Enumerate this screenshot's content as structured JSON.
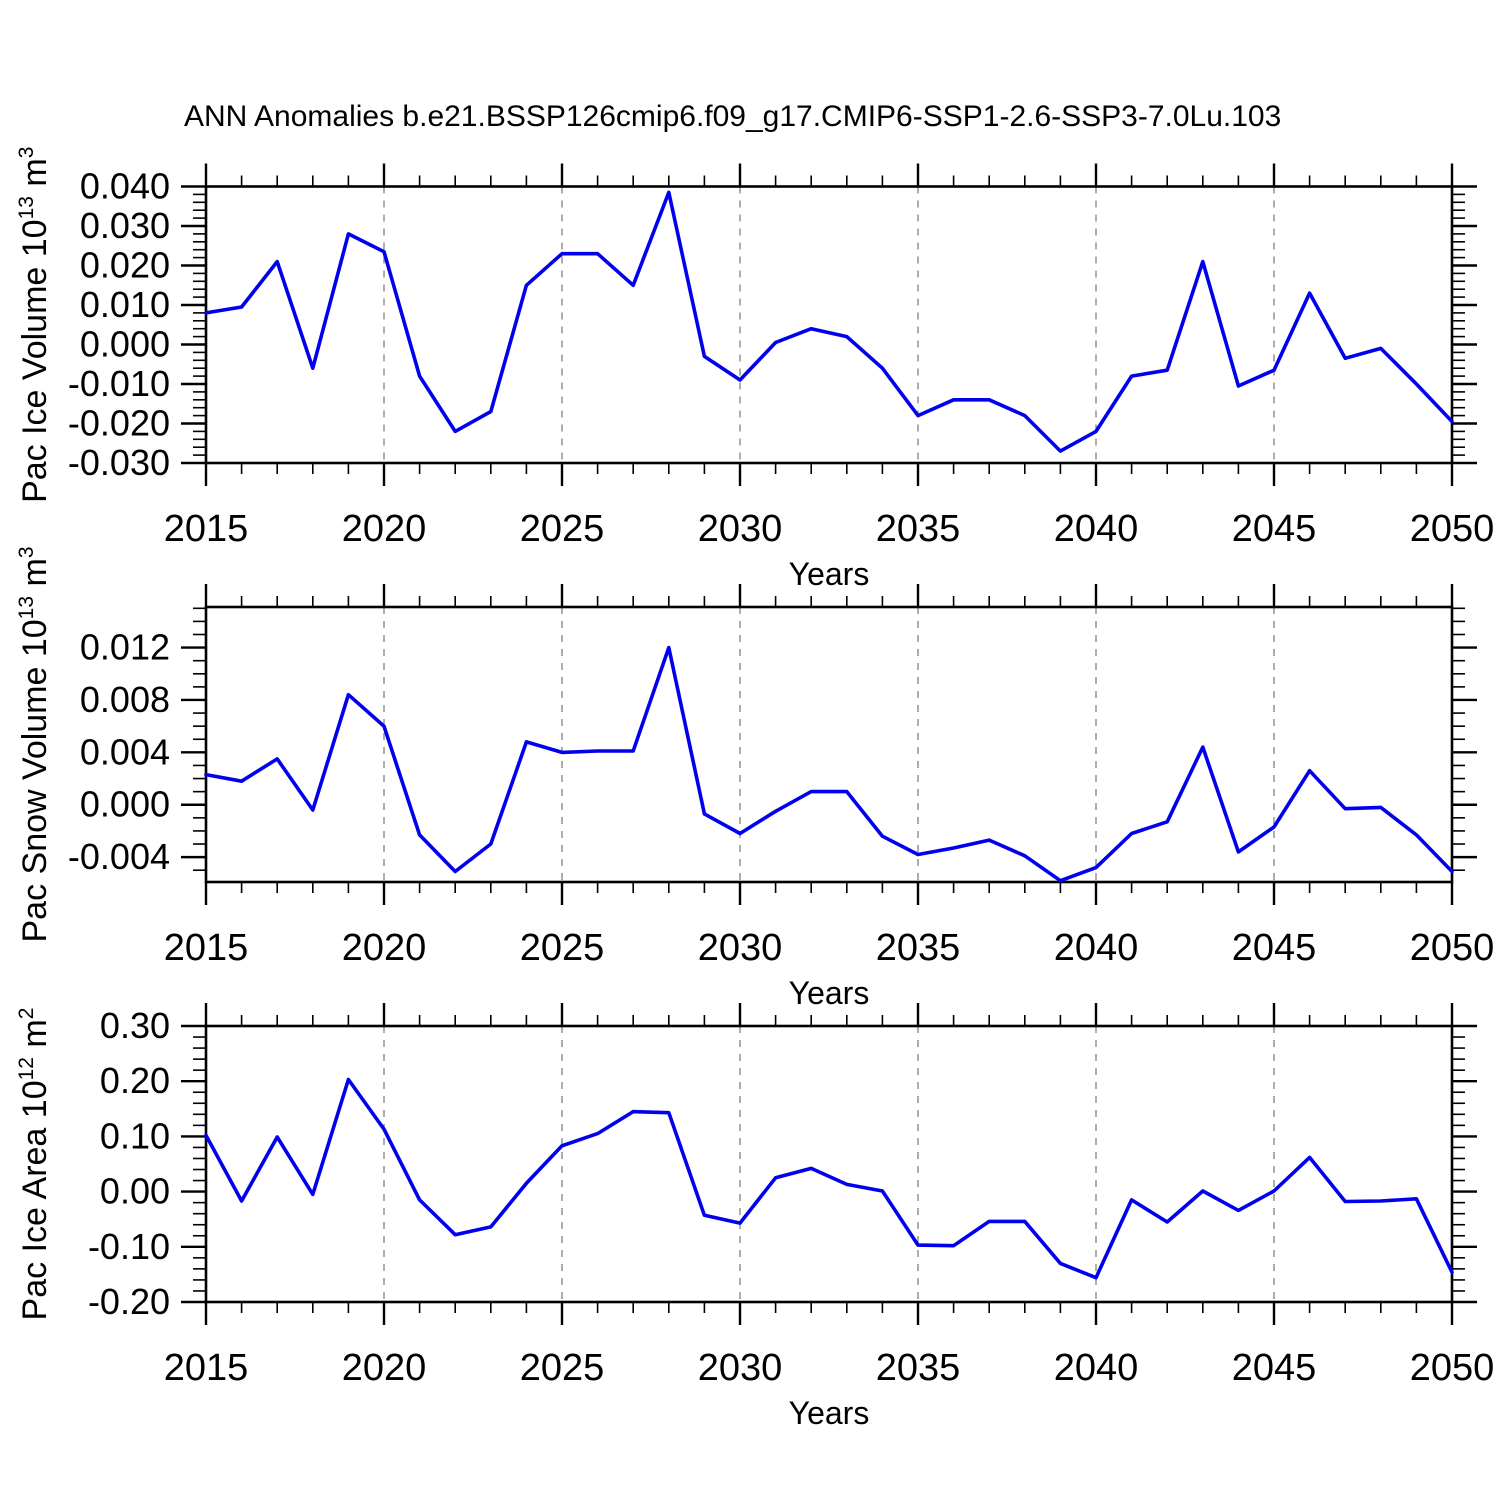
{
  "title": "ANN Anomalies b.e21.BSSP126cmip6.f09_g17.CMIP6-SSP1-2.6-SSP3-7.0Lu.103",
  "colors": {
    "line": "#0000ee",
    "axis": "#000000",
    "grid": "#8a8a8a",
    "background": "#ffffff"
  },
  "chart_data": [
    {
      "type": "line",
      "ylabel": "Pac Ice Volume 10^13 m^3",
      "xlabel": "Years",
      "x": [
        2015,
        2016,
        2017,
        2018,
        2019,
        2020,
        2021,
        2022,
        2023,
        2024,
        2025,
        2026,
        2027,
        2028,
        2029,
        2030,
        2031,
        2032,
        2033,
        2034,
        2035,
        2036,
        2037,
        2038,
        2039,
        2040,
        2041,
        2042,
        2043,
        2044,
        2045,
        2046,
        2047,
        2048,
        2049,
        2050
      ],
      "values": [
        0.008,
        0.0095,
        0.021,
        -0.006,
        0.028,
        0.0235,
        -0.008,
        -0.022,
        -0.017,
        0.015,
        0.023,
        0.023,
        0.015,
        0.0385,
        -0.003,
        -0.009,
        0.0005,
        0.004,
        0.002,
        -0.006,
        -0.018,
        -0.014,
        -0.014,
        -0.018,
        -0.027,
        -0.022,
        -0.008,
        -0.0065,
        0.021,
        -0.0105,
        -0.0065,
        0.013,
        -0.0035,
        -0.001,
        -0.01,
        -0.0195
      ],
      "ylim": [
        -0.03,
        0.04
      ],
      "ytick_values": [
        0.04,
        0.03,
        0.02,
        0.01,
        0.0,
        -0.01,
        -0.02,
        -0.03
      ],
      "ytick_labels": [
        "0.040",
        "0.030",
        "0.020",
        "0.010",
        "0.000",
        "-0.010",
        "-0.020",
        "-0.030"
      ],
      "yminor_step": 0.002,
      "xtick_values": [
        2015,
        2020,
        2025,
        2030,
        2035,
        2040,
        2045,
        2050
      ],
      "xtick_labels": [
        "2015",
        "2020",
        "2025",
        "2030",
        "2035",
        "2040",
        "2045",
        "2050"
      ],
      "xminor_step": 1,
      "grid_x": [
        2020,
        2025,
        2030,
        2035,
        2040,
        2045
      ],
      "grid_on": true,
      "legend": "none"
    },
    {
      "type": "line",
      "ylabel": "Pac Snow Volume 10^13 m^3",
      "xlabel": "Years",
      "x": [
        2015,
        2016,
        2017,
        2018,
        2019,
        2020,
        2021,
        2022,
        2023,
        2024,
        2025,
        2026,
        2027,
        2028,
        2029,
        2030,
        2031,
        2032,
        2033,
        2034,
        2035,
        2036,
        2037,
        2038,
        2039,
        2040,
        2041,
        2042,
        2043,
        2044,
        2045,
        2046,
        2047,
        2048,
        2049,
        2050
      ],
      "values": [
        0.0023,
        0.0018,
        0.0035,
        -0.0004,
        0.0084,
        0.006,
        -0.0023,
        -0.0051,
        -0.003,
        0.0048,
        0.004,
        0.0041,
        0.0041,
        0.012,
        -0.0007,
        -0.0022,
        -0.0005,
        0.001,
        0.001,
        -0.0024,
        -0.0038,
        -0.0033,
        -0.0027,
        -0.0039,
        -0.0058,
        -0.0048,
        -0.0022,
        -0.0013,
        0.0044,
        -0.0036,
        -0.0017,
        0.0026,
        -0.0003,
        -0.0002,
        -0.0023,
        -0.0051
      ],
      "ylim": [
        -0.0059,
        0.0151
      ],
      "ytick_values": [
        0.012,
        0.008,
        0.004,
        0.0,
        -0.004
      ],
      "ytick_labels": [
        "0.012",
        "0.008",
        "0.004",
        "0.000",
        "-0.004"
      ],
      "yminor_step": 0.001,
      "xtick_values": [
        2015,
        2020,
        2025,
        2030,
        2035,
        2040,
        2045,
        2050
      ],
      "xtick_labels": [
        "2015",
        "2020",
        "2025",
        "2030",
        "2035",
        "2040",
        "2045",
        "2050"
      ],
      "xminor_step": 1,
      "grid_x": [
        2020,
        2025,
        2030,
        2035,
        2040,
        2045
      ],
      "grid_on": true,
      "legend": "none"
    },
    {
      "type": "line",
      "ylabel": "Pac Ice Area 10^12 m^2",
      "xlabel": "Years",
      "x": [
        2015,
        2016,
        2017,
        2018,
        2019,
        2020,
        2021,
        2022,
        2023,
        2024,
        2025,
        2026,
        2027,
        2028,
        2029,
        2030,
        2031,
        2032,
        2033,
        2034,
        2035,
        2036,
        2037,
        2038,
        2039,
        2040,
        2041,
        2042,
        2043,
        2044,
        2045,
        2046,
        2047,
        2048,
        2049,
        2050
      ],
      "values": [
        0.102,
        -0.017,
        0.099,
        -0.005,
        0.203,
        0.113,
        -0.015,
        -0.078,
        -0.064,
        0.015,
        0.083,
        0.105,
        0.145,
        0.143,
        -0.043,
        -0.057,
        0.025,
        0.042,
        0.013,
        0.001,
        -0.097,
        -0.098,
        -0.054,
        -0.054,
        -0.13,
        -0.156,
        -0.015,
        -0.055,
        0.001,
        -0.034,
        0.001,
        0.062,
        -0.018,
        -0.017,
        -0.013,
        -0.146
      ],
      "ylim": [
        -0.2,
        0.3
      ],
      "ytick_values": [
        0.3,
        0.2,
        0.1,
        0.0,
        -0.1,
        -0.2
      ],
      "ytick_labels": [
        "0.30",
        "0.20",
        "0.10",
        "0.00",
        "-0.10",
        "-0.20"
      ],
      "yminor_step": 0.02,
      "xtick_values": [
        2015,
        2020,
        2025,
        2030,
        2035,
        2040,
        2045,
        2050
      ],
      "xtick_labels": [
        "2015",
        "2020",
        "2025",
        "2030",
        "2035",
        "2040",
        "2045",
        "2050"
      ],
      "xminor_step": 1,
      "grid_x": [
        2020,
        2025,
        2030,
        2035,
        2040,
        2045
      ],
      "grid_on": true,
      "legend": "none"
    }
  ]
}
